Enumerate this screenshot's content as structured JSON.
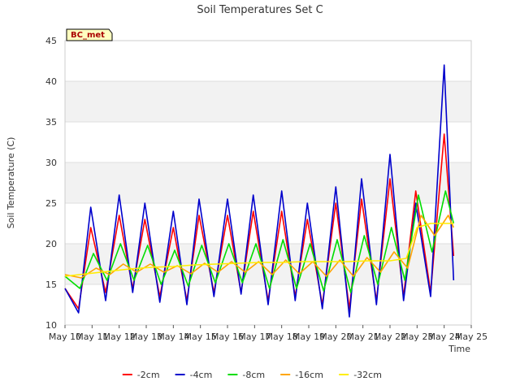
{
  "chart_data": {
    "type": "line",
    "title": "Soil Temperatures Set C",
    "xlabel": "Time",
    "ylabel": "Soil Temperature (C)",
    "site_label": "BC_met",
    "xlim": [
      10,
      25
    ],
    "ylim": [
      10,
      45
    ],
    "x_ticks": [
      "May 10",
      "May 11",
      "May 12",
      "May 13",
      "May 14",
      "May 15",
      "May 16",
      "May 17",
      "May 18",
      "May 19",
      "May 20",
      "May 21",
      "May 22",
      "May 23",
      "May 24",
      "May 25"
    ],
    "y_ticks": [
      "10",
      "15",
      "20",
      "25",
      "30",
      "35",
      "40",
      "45"
    ],
    "band_stripes": true,
    "legend_position": "bottom",
    "series": [
      {
        "name": "-2cm",
        "color": "#ff0000",
        "x": [
          10.0,
          10.5,
          10.95,
          11.5,
          12.0,
          12.5,
          12.95,
          13.5,
          14.0,
          14.5,
          14.95,
          15.5,
          16.0,
          16.5,
          16.95,
          17.5,
          18.0,
          18.5,
          18.95,
          19.5,
          20.0,
          20.5,
          20.95,
          21.5,
          22.0,
          22.5,
          22.95,
          23.5,
          24.0,
          24.35
        ],
        "y": [
          14.5,
          12.0,
          22.0,
          14.0,
          23.5,
          14.5,
          23.0,
          13.5,
          22.0,
          13.0,
          23.5,
          14.0,
          23.5,
          14.0,
          24.0,
          13.0,
          24.0,
          13.5,
          23.0,
          12.5,
          25.0,
          12.0,
          25.5,
          13.0,
          28.0,
          13.5,
          26.5,
          14.0,
          33.5,
          18.5
        ]
      },
      {
        "name": "-4cm",
        "color": "#0000cc",
        "x": [
          10.0,
          10.5,
          10.95,
          11.5,
          12.0,
          12.5,
          12.95,
          13.5,
          14.0,
          14.5,
          14.95,
          15.5,
          16.0,
          16.5,
          16.95,
          17.5,
          18.0,
          18.5,
          18.95,
          19.5,
          20.0,
          20.5,
          20.95,
          21.5,
          22.0,
          22.5,
          22.95,
          23.5,
          24.0,
          24.35
        ],
        "y": [
          14.5,
          11.5,
          24.5,
          13.0,
          26.0,
          14.0,
          25.0,
          12.8,
          24.0,
          12.5,
          25.5,
          13.5,
          25.5,
          13.8,
          26.0,
          12.5,
          26.5,
          13.0,
          25.0,
          12.0,
          27.0,
          11.0,
          28.0,
          12.5,
          31.0,
          13.0,
          25.0,
          13.5,
          42.0,
          15.5
        ]
      },
      {
        "name": "-8cm",
        "color": "#00dd00",
        "x": [
          10.0,
          10.55,
          11.05,
          11.55,
          12.05,
          12.55,
          13.05,
          13.55,
          14.05,
          14.55,
          15.05,
          15.55,
          16.05,
          16.55,
          17.05,
          17.55,
          18.05,
          18.55,
          19.05,
          19.55,
          20.05,
          20.55,
          21.05,
          21.55,
          22.05,
          22.55,
          23.05,
          23.55,
          24.05,
          24.35
        ],
        "y": [
          16.0,
          14.5,
          18.8,
          15.5,
          20.0,
          15.5,
          19.8,
          15.0,
          19.2,
          14.8,
          19.8,
          15.2,
          20.0,
          15.2,
          20.0,
          14.5,
          20.5,
          14.5,
          20.0,
          14.2,
          20.5,
          14.0,
          21.0,
          15.0,
          22.0,
          15.5,
          26.0,
          19.0,
          26.5,
          22.5
        ]
      },
      {
        "name": "-16cm",
        "color": "#ffa500",
        "x": [
          10.0,
          10.6,
          11.15,
          11.65,
          12.15,
          12.65,
          13.15,
          13.65,
          14.15,
          14.65,
          15.15,
          15.65,
          16.15,
          16.65,
          17.15,
          17.65,
          18.15,
          18.65,
          19.15,
          19.65,
          20.15,
          20.65,
          21.15,
          21.65,
          22.15,
          22.65,
          23.15,
          23.65,
          24.15,
          24.35
        ],
        "y": [
          16.2,
          15.8,
          17.0,
          16.2,
          17.5,
          16.5,
          17.5,
          16.5,
          17.3,
          16.3,
          17.6,
          16.5,
          17.8,
          16.5,
          17.8,
          16.2,
          18.0,
          16.3,
          17.8,
          16.0,
          18.0,
          16.0,
          18.3,
          16.5,
          19.0,
          17.0,
          23.5,
          21.0,
          23.5,
          22.0
        ]
      },
      {
        "name": "-32cm",
        "color": "#ffee00",
        "x": [
          10.0,
          10.8,
          11.6,
          12.4,
          13.2,
          14.0,
          14.8,
          15.6,
          16.4,
          17.2,
          18.0,
          18.8,
          19.6,
          20.4,
          21.2,
          22.0,
          22.6,
          23.0,
          23.5,
          24.0,
          24.35
        ],
        "y": [
          16.0,
          16.3,
          16.6,
          16.9,
          17.1,
          17.2,
          17.4,
          17.5,
          17.6,
          17.7,
          17.7,
          17.8,
          17.8,
          17.8,
          17.9,
          17.9,
          18.2,
          22.0,
          22.5,
          22.5,
          22.5
        ]
      }
    ]
  }
}
